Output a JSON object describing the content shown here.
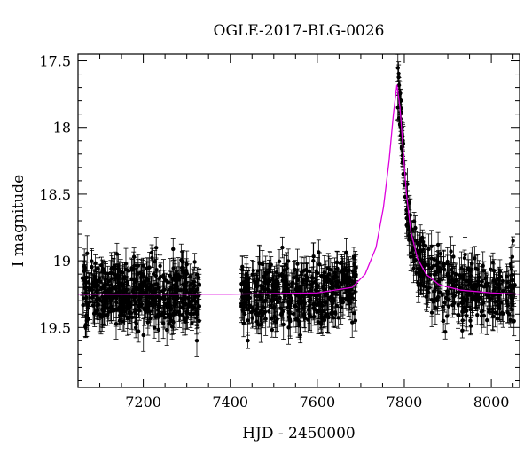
{
  "chart_data": {
    "type": "scatter",
    "title": "OGLE-2017-BLG-0026",
    "xlabel": "HJD - 2450000",
    "ylabel": "I magnitude",
    "xlim": [
      7050,
      8065
    ],
    "ylim": [
      19.95,
      17.45
    ],
    "y_inverted": true,
    "xticks": [
      7200,
      7400,
      7600,
      7800,
      8000
    ],
    "yticks": [
      17.5,
      18,
      18.5,
      19,
      19.5
    ],
    "xtick_labels": [
      "7200",
      "7400",
      "7600",
      "7800",
      "8000"
    ],
    "ytick_labels": [
      "17.5",
      "18",
      "18.5",
      "19",
      "19.5"
    ],
    "grid": false,
    "colors": {
      "data": "#000000",
      "model": "#dd00dd"
    },
    "series": [
      {
        "kind": "data",
        "style": "points-with-errorbars",
        "segments": [
          {
            "x_range": [
              7060,
              7330
            ],
            "baseline_mag": 19.25,
            "scatter": 0.12,
            "typical_err": 0.09,
            "approx_points": 500
          },
          {
            "x_range": [
              7425,
              7690
            ],
            "baseline_mag": 19.25,
            "scatter": 0.12,
            "typical_err": 0.09,
            "approx_points": 450
          },
          {
            "x_range": [
              7785,
              8055
            ],
            "baseline_mag": 19.25,
            "scatter": 0.12,
            "typical_err": 0.09,
            "approx_points": 350
          }
        ],
        "sampled_points": [
          {
            "x": 7788,
            "y": 17.93
          },
          {
            "x": 7790,
            "y": 17.98
          },
          {
            "x": 7792,
            "y": 18.06
          },
          {
            "x": 7794,
            "y": 18.16
          },
          {
            "x": 7796,
            "y": 18.26
          },
          {
            "x": 7798,
            "y": 18.35
          },
          {
            "x": 7800,
            "y": 18.43
          },
          {
            "x": 7802,
            "y": 18.52
          },
          {
            "x": 7805,
            "y": 18.62
          },
          {
            "x": 7808,
            "y": 18.72
          },
          {
            "x": 7812,
            "y": 18.82
          },
          {
            "x": 7818,
            "y": 18.92
          },
          {
            "x": 7825,
            "y": 19.0
          },
          {
            "x": 7835,
            "y": 19.08
          },
          {
            "x": 8050,
            "y": 18.85
          }
        ]
      },
      {
        "kind": "model",
        "style": "line",
        "peak_x": 7783,
        "peak_mag": 17.68,
        "baseline_mag": 19.25,
        "curve": [
          {
            "x": 7050,
            "y": 19.25
          },
          {
            "x": 7400,
            "y": 19.25
          },
          {
            "x": 7600,
            "y": 19.24
          },
          {
            "x": 7680,
            "y": 19.2
          },
          {
            "x": 7710,
            "y": 19.1
          },
          {
            "x": 7735,
            "y": 18.9
          },
          {
            "x": 7752,
            "y": 18.6
          },
          {
            "x": 7765,
            "y": 18.25
          },
          {
            "x": 7775,
            "y": 17.9
          },
          {
            "x": 7783,
            "y": 17.68
          },
          {
            "x": 7790,
            "y": 17.85
          },
          {
            "x": 7797,
            "y": 18.15
          },
          {
            "x": 7805,
            "y": 18.5
          },
          {
            "x": 7815,
            "y": 18.78
          },
          {
            "x": 7830,
            "y": 18.98
          },
          {
            "x": 7850,
            "y": 19.1
          },
          {
            "x": 7880,
            "y": 19.18
          },
          {
            "x": 7930,
            "y": 19.22
          },
          {
            "x": 8000,
            "y": 19.24
          },
          {
            "x": 8065,
            "y": 19.25
          }
        ]
      }
    ]
  }
}
